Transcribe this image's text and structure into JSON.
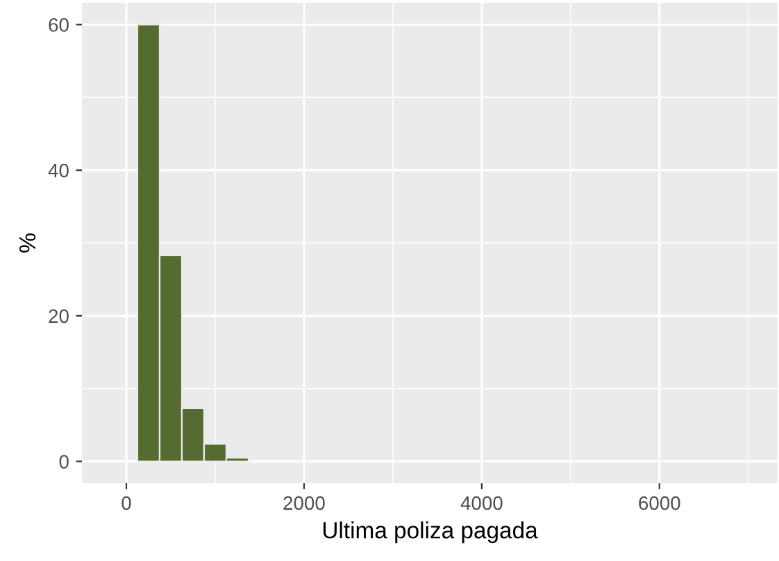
{
  "chart_data": {
    "type": "histogram",
    "xlabel": "Ultima poliza pagada",
    "ylabel": "%",
    "bins": [
      125,
      375,
      625,
      875,
      1125,
      1375
    ],
    "values": [
      60.0,
      28.3,
      7.3,
      2.4,
      0.5
    ],
    "color": "#556b2f",
    "xlim": [
      -500,
      7330
    ],
    "ylim": [
      -3,
      63
    ],
    "xticks": [
      0,
      2000,
      4000,
      6000
    ],
    "yticks": [
      0,
      20,
      40,
      60
    ],
    "grid": true
  }
}
